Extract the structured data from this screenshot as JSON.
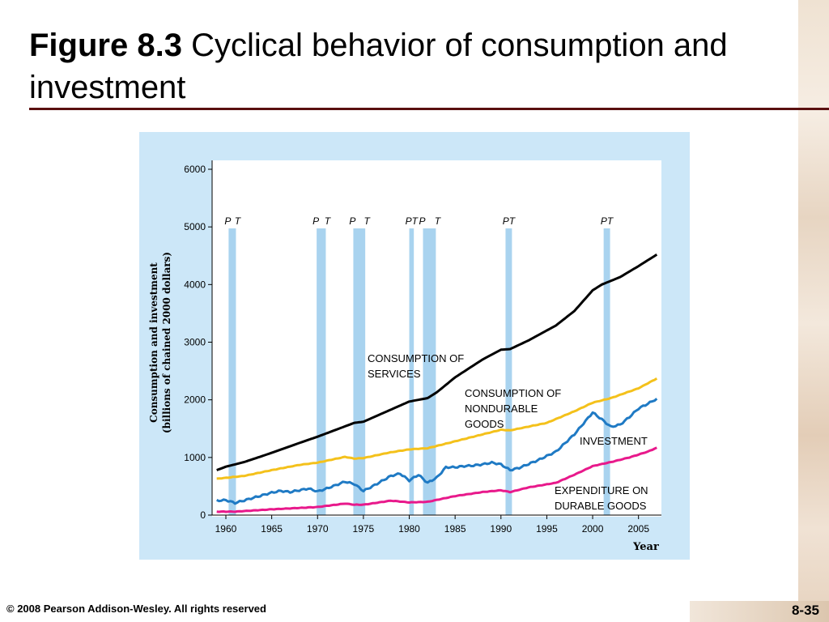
{
  "slide": {
    "title_lead": "Figure 8.3",
    "title_rest": "Cyclical behavior of consumption and investment",
    "copyright": "© 2008 Pearson Addison-Wesley. All rights reserved",
    "page_number": "8-35"
  },
  "chart_data": {
    "type": "line",
    "title": "",
    "xlabel": "Year",
    "ylabel": "Consumption and investment (billions of chained 2000 dollars)",
    "ylabel_lines": [
      "Consumption and investment",
      "(billions of chained 2000 dollars)"
    ],
    "xlim": [
      1958.5,
      2007.5
    ],
    "ylim": [
      0,
      6000
    ],
    "x_ticks": [
      1960,
      1965,
      1970,
      1975,
      1980,
      1985,
      1990,
      1995,
      2000,
      2005
    ],
    "x_tick_labels": [
      "1960",
      "1965",
      "1970",
      "1975",
      "1980",
      "1985",
      "1990",
      "1995",
      "2000",
      "2005"
    ],
    "y_ticks": [
      0,
      1000,
      2000,
      3000,
      4000,
      5000,
      6000
    ],
    "y_tick_labels": [
      "0",
      "1000",
      "2000",
      "3000",
      "4000",
      "5000",
      "6000"
    ],
    "grid": false,
    "legend": "inline labels",
    "recessions": [
      {
        "peak": 1960.3,
        "trough": 1961.1,
        "labels": [
          "P",
          "T"
        ]
      },
      {
        "peak": 1969.9,
        "trough": 1970.9,
        "labels": [
          "P",
          "T"
        ]
      },
      {
        "peak": 1973.9,
        "trough": 1975.2,
        "labels": [
          "P",
          "T"
        ]
      },
      {
        "peak": 1980.0,
        "trough": 1980.5,
        "labels": [
          "PT"
        ]
      },
      {
        "peak": 1981.5,
        "trough": 1982.9,
        "labels": [
          "P",
          "T"
        ]
      },
      {
        "peak": 1990.5,
        "trough": 1991.2,
        "labels": [
          "PT"
        ]
      },
      {
        "peak": 2001.2,
        "trough": 2001.9,
        "labels": [
          "PT"
        ]
      }
    ],
    "series": [
      {
        "name": "CONSUMPTION OF SERVICES",
        "label_lines": [
          "CONSUMPTION OF",
          "SERVICES"
        ],
        "color": "#000000",
        "x": [
          1959,
          1960,
          1962,
          1965,
          1968,
          1970,
          1972,
          1974,
          1975,
          1978,
          1980,
          1982,
          1983,
          1985,
          1988,
          1990,
          1991,
          1993,
          1996,
          1998,
          2000,
          2001,
          2003,
          2005,
          2007
        ],
        "y": [
          780,
          840,
          920,
          1080,
          1250,
          1360,
          1480,
          1600,
          1620,
          1830,
          1970,
          2030,
          2130,
          2390,
          2700,
          2870,
          2880,
          3030,
          3290,
          3540,
          3900,
          4000,
          4130,
          4320,
          4520
        ]
      },
      {
        "name": "CONSUMPTION OF NONDURABLE GOODS",
        "label_lines": [
          "CONSUMPTION OF",
          "NONDURABLE",
          "GOODS"
        ],
        "color": "#f4c11b",
        "x": [
          1959,
          1962,
          1965,
          1968,
          1970,
          1973,
          1974,
          1975,
          1978,
          1980,
          1982,
          1985,
          1988,
          1990,
          1991,
          1995,
          1998,
          2000,
          2002,
          2005,
          2007
        ],
        "y": [
          630,
          680,
          780,
          870,
          910,
          1010,
          980,
          990,
          1090,
          1140,
          1160,
          1280,
          1400,
          1480,
          1470,
          1600,
          1800,
          1950,
          2030,
          2200,
          2370
        ]
      },
      {
        "name": "INVESTMENT",
        "label_lines": [
          "INVESTMENT"
        ],
        "color": "#1f7ac4",
        "x": [
          1959,
          1960,
          1961,
          1963,
          1965,
          1966,
          1967,
          1969,
          1970,
          1971,
          1973,
          1974,
          1975,
          1976,
          1978,
          1979,
          1980,
          1981,
          1982,
          1983,
          1984,
          1985,
          1986,
          1987,
          1988,
          1989,
          1990,
          1991,
          1992,
          1994,
          1996,
          1998,
          2000,
          2001,
          2002,
          2003,
          2004,
          2005,
          2006,
          2007
        ],
        "y": [
          250,
          260,
          210,
          300,
          390,
          420,
          400,
          460,
          410,
          460,
          580,
          540,
          420,
          500,
          680,
          720,
          600,
          700,
          560,
          650,
          830,
          830,
          850,
          860,
          880,
          910,
          880,
          780,
          820,
          950,
          1100,
          1400,
          1780,
          1660,
          1530,
          1570,
          1700,
          1850,
          1930,
          2020
        ]
      },
      {
        "name": "EXPENDITURE ON DURABLE GOODS",
        "label_lines": [
          "EXPENDITURE ON",
          "DURABLE GOODS"
        ],
        "color": "#e8198b",
        "x": [
          1959,
          1961,
          1965,
          1970,
          1973,
          1974,
          1975,
          1978,
          1980,
          1982,
          1985,
          1988,
          1990,
          1991,
          1993,
          1996,
          1998,
          2000,
          2002,
          2004,
          2006,
          2007
        ],
        "y": [
          60,
          60,
          100,
          140,
          200,
          180,
          180,
          250,
          220,
          230,
          330,
          400,
          430,
          400,
          480,
          560,
          700,
          850,
          920,
          1000,
          1100,
          1170
        ]
      }
    ]
  }
}
